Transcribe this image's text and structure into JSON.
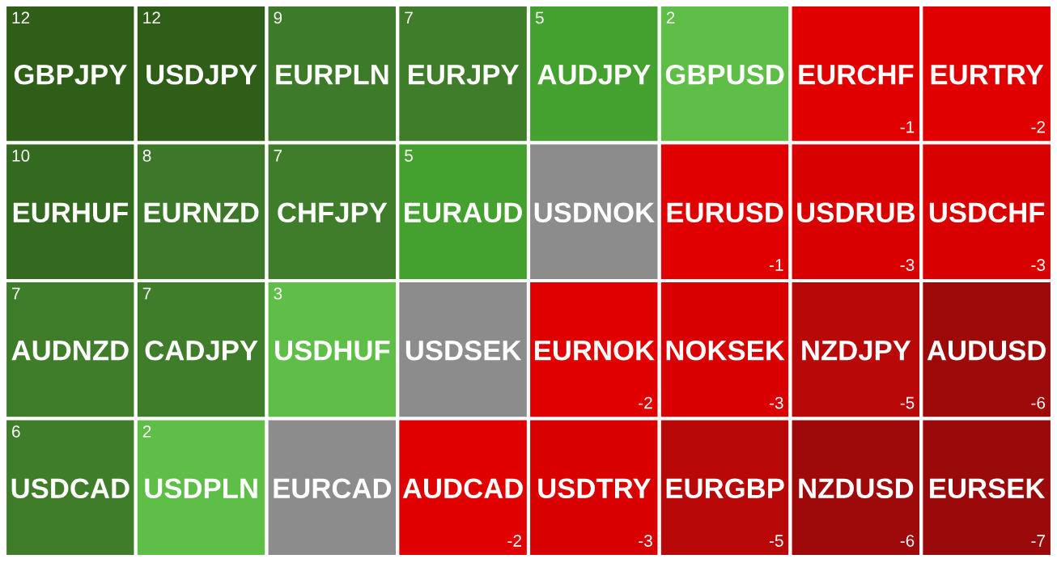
{
  "chart_data": {
    "type": "other",
    "categories": [
      "GBPJPY",
      "USDJPY",
      "EURPLN",
      "EURJPY",
      "AUDJPY",
      "GBPUSD",
      "EURCHF",
      "EURTRY",
      "EURHUF",
      "EURNZD",
      "CHFJPY",
      "EURAUD",
      "USDNOK",
      "EURUSD",
      "USDRUB",
      "USDCHF",
      "AUDNZD",
      "CADJPY",
      "USDHUF",
      "USDSEK",
      "EURNOK",
      "NOKSEK",
      "NZDJPY",
      "AUDUSD",
      "USDCAD",
      "USDPLN",
      "EURCAD",
      "AUDCAD",
      "USDTRY",
      "EURGBP",
      "NZDUSD",
      "EURSEK"
    ],
    "values": [
      12,
      12,
      9,
      7,
      5,
      2,
      -1,
      -2,
      10,
      8,
      7,
      5,
      null,
      -1,
      -3,
      -3,
      7,
      7,
      3,
      null,
      -2,
      -3,
      -5,
      -6,
      6,
      2,
      null,
      -2,
      -3,
      -5,
      -6,
      -7
    ],
    "value_labels": [
      "12",
      "12",
      "9",
      "7",
      "5",
      "2",
      "-1",
      "-2",
      "10",
      "8",
      "7",
      "5",
      null,
      "-1",
      "-3",
      "-3",
      "7",
      "7",
      "3",
      null,
      "-2",
      "-3",
      "-5",
      "-6",
      "6",
      "2",
      null,
      "-2",
      "-3",
      "-5",
      "-6",
      "-7"
    ],
    "colors": [
      "#2e5e18",
      "#2e5e18",
      "#3d7a2a",
      "#3f7d2b",
      "#45a12f",
      "#5ebe47",
      "#e00000",
      "#e00000",
      "#346a1f",
      "#3c772a",
      "#3f7d2b",
      "#45a12f",
      "#8c8c8c",
      "#e00000",
      "#d80000",
      "#d80000",
      "#3f7d2b",
      "#3f7d2b",
      "#5ebe47",
      "#8c8c8c",
      "#e00000",
      "#d80000",
      "#b80808",
      "#9e0a0a",
      "#3f7d2b",
      "#5ebe47",
      "#8c8c8c",
      "#e00000",
      "#d80000",
      "#b80808",
      "#9e0a0a",
      "#9a0a0a"
    ]
  }
}
